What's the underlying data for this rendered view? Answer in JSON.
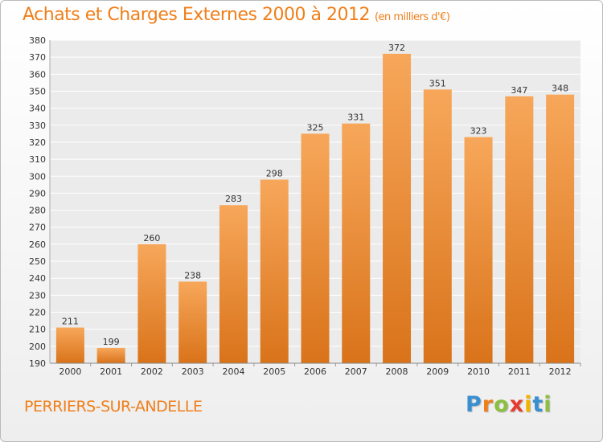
{
  "title": "Achats et Charges Externes 2000 à 2012",
  "unit": "(en milliers d'€)",
  "commune": "PERRIERS-SUR-ANDELLE",
  "logo": {
    "letters": [
      "P",
      "r",
      "o",
      "x",
      "i",
      "t",
      "i"
    ],
    "colors": [
      "#3a8fd0",
      "#f07f1a",
      "#8cbf3f",
      "#e63b2e",
      "#f2b200",
      "#3a8fd0",
      "#8cbf3f"
    ]
  },
  "colors": {
    "bar_top": "#f7a75a",
    "bar_bottom": "#d9731a",
    "title": "#f07f1a"
  },
  "chart_data": {
    "type": "bar",
    "categories": [
      "2000",
      "2001",
      "2002",
      "2003",
      "2004",
      "2005",
      "2006",
      "2007",
      "2008",
      "2009",
      "2010",
      "2011",
      "2012"
    ],
    "values": [
      211,
      199,
      260,
      238,
      283,
      298,
      325,
      331,
      372,
      351,
      323,
      347,
      348
    ],
    "ylim": [
      190,
      380
    ],
    "yticks": [
      190,
      200,
      210,
      220,
      230,
      240,
      250,
      260,
      270,
      280,
      290,
      300,
      310,
      320,
      330,
      340,
      350,
      360,
      370,
      380
    ],
    "grid": true,
    "grid_axis": "y",
    "data_labels": true
  }
}
